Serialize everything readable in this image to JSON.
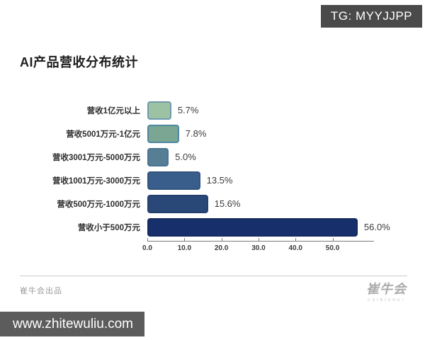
{
  "badges": {
    "tg": "TG: MYYJJPP",
    "watermark": "www.zhitewuliu.com"
  },
  "title": "AI产品营收分布统计",
  "chart_data": {
    "type": "bar",
    "orientation": "horizontal",
    "title": "AI产品营收分布统计",
    "categories": [
      "营收1亿元以上",
      "营收5001万元-1亿元",
      "营收3001万元-5000万元",
      "营收1001万元-3000万元",
      "营收500万元-1000万元",
      "营收小于500万元"
    ],
    "values": [
      5.7,
      7.8,
      5.0,
      13.5,
      15.6,
      56.0
    ],
    "value_labels": [
      "5.7%",
      "7.8%",
      "5.0%",
      "13.5%",
      "15.6%",
      "56.0%"
    ],
    "bar_colors": [
      "#9cc2a3",
      "#7aa693",
      "#567e95",
      "#395e8b",
      "#294878",
      "#17306b"
    ],
    "bar_border_colors": [
      "#6f9ab0",
      "#4f87a5",
      "#4a7492",
      "#33547e",
      "#24406c",
      "#142a5f"
    ],
    "x_ticks": [
      0,
      10,
      20,
      30,
      40,
      50
    ],
    "x_tick_labels": [
      "0.0",
      "10.0",
      "20.0",
      "30.0",
      "40.0",
      "50.0"
    ],
    "xlim": [
      0,
      58.5
    ],
    "xlabel": "",
    "ylabel": "",
    "grid": false,
    "legend": false
  },
  "footer": {
    "credit": "崔牛会出品",
    "logo_text": "崔牛会",
    "logo_subtext": "CUINIUHUI"
  }
}
